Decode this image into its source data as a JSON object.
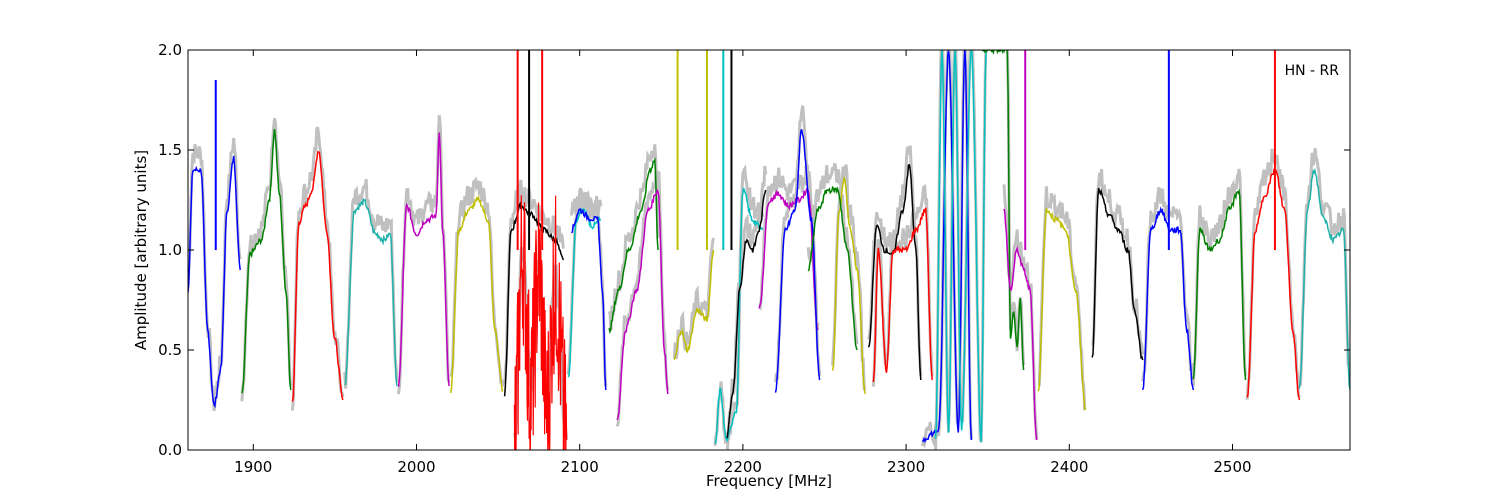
{
  "chart_data": {
    "type": "line",
    "title": "",
    "xlabel": "Frequency [MHz]",
    "ylabel": "Amplitude [arbitrary units]",
    "annotation": "HN - RR",
    "xlim": [
      1860,
      2572
    ],
    "ylim": [
      0.0,
      2.0
    ],
    "x_ticks": [
      1900,
      2000,
      2100,
      2200,
      2300,
      2400,
      2500
    ],
    "x_tick_labels": [
      "1900",
      "2000",
      "2100",
      "2200",
      "2300",
      "2400",
      "2500"
    ],
    "y_ticks": [
      0.0,
      0.5,
      1.0,
      1.5,
      2.0
    ],
    "y_tick_labels": [
      "0.0",
      "0.5",
      "1.0",
      "1.5",
      "2.0"
    ],
    "grid": false,
    "legend": "none",
    "background_series_color": "#c0c0c0",
    "segments": [
      {
        "color": "#0000ff",
        "x": [
          1860,
          1863,
          1868,
          1872,
          1876,
          1880,
          1884,
          1888,
          1892
        ],
        "y": [
          0.8,
          1.4,
          1.4,
          0.6,
          0.22,
          0.4,
          1.2,
          1.46,
          0.9
        ],
        "spikes": [
          [
            1877,
            1.85
          ]
        ]
      },
      {
        "color": "#008000",
        "x": [
          1893,
          1898,
          1905,
          1910,
          1913,
          1916,
          1920,
          1923
        ],
        "y": [
          0.27,
          0.98,
          1.05,
          1.26,
          1.6,
          1.28,
          0.8,
          0.3
        ]
      },
      {
        "color": "#ff0000",
        "x": [
          1924,
          1928,
          1932,
          1936,
          1940,
          1945,
          1950,
          1955
        ],
        "y": [
          0.24,
          1.14,
          1.22,
          1.3,
          1.5,
          1.1,
          0.55,
          0.25
        ]
      },
      {
        "color": "#20b2aa",
        "x": [
          1956,
          1962,
          1968,
          1975,
          1980,
          1984,
          1988
        ],
        "y": [
          0.32,
          1.2,
          1.24,
          1.08,
          1.05,
          1.08,
          0.32
        ]
      },
      {
        "color": "#c000c0",
        "x": [
          1989,
          1994,
          2000,
          2006,
          2012,
          2014,
          2016,
          2020
        ],
        "y": [
          0.32,
          1.22,
          1.08,
          1.15,
          1.17,
          1.6,
          1.1,
          0.32
        ]
      },
      {
        "color": "#bfbf00",
        "x": [
          2021,
          2026,
          2032,
          2038,
          2044,
          2048,
          2053
        ],
        "y": [
          0.3,
          1.1,
          1.2,
          1.25,
          1.15,
          0.6,
          0.3
        ]
      },
      {
        "color": "#000000",
        "x": [
          2054,
          2058,
          2064,
          2070,
          2078,
          2085,
          2090
        ],
        "y": [
          0.28,
          1.1,
          1.22,
          1.18,
          1.1,
          1.05,
          0.95
        ],
        "spikes": [
          [
            2069,
            2.0
          ]
        ]
      },
      {
        "color": "#ff0000",
        "x": [
          2060,
          2065,
          2070,
          2075,
          2080,
          2085,
          2092
        ],
        "y": [
          0.05,
          0.98,
          0.3,
          0.9,
          0.2,
          0.85,
          0.05
        ],
        "spikes": [
          [
            2062,
            2.0
          ],
          [
            2077,
            2.0
          ]
        ]
      },
      {
        "color": "#00bfbf",
        "x": [
          2093,
          2098,
          2102,
          2108,
          2113
        ],
        "y": [
          0.35,
          1.15,
          1.2,
          1.12,
          1.15
        ]
      },
      {
        "color": "#0000ff",
        "x": [
          2095,
          2100,
          2106,
          2111,
          2114,
          2116
        ],
        "y": [
          1.1,
          1.2,
          1.16,
          1.15,
          0.8,
          0.3
        ]
      },
      {
        "color": "#008000",
        "x": [
          2118,
          2124,
          2130,
          2138,
          2143,
          2146,
          2148
        ],
        "y": [
          0.6,
          0.8,
          1.0,
          1.2,
          1.4,
          1.45,
          1.0
        ]
      },
      {
        "color": "#c000c0",
        "x": [
          2123,
          2128,
          2135,
          2142,
          2148,
          2152,
          2154
        ],
        "y": [
          0.15,
          0.6,
          0.8,
          1.2,
          1.3,
          0.5,
          0.28
        ]
      },
      {
        "color": "#bfbf00",
        "x": [
          2158,
          2162,
          2166,
          2172,
          2178,
          2182
        ],
        "y": [
          0.45,
          0.6,
          0.5,
          0.7,
          0.65,
          1.0
        ],
        "spikes": [
          [
            2160,
            2.0
          ],
          [
            2178,
            2.0
          ]
        ]
      },
      {
        "color": "#00bfbf",
        "x": [
          2183,
          2186,
          2190,
          2196,
          2200,
          2206,
          2212
        ],
        "y": [
          0.02,
          0.3,
          0.05,
          0.2,
          1.3,
          1.15,
          1.1
        ],
        "spikes": [
          [
            2188,
            2.0
          ]
        ]
      },
      {
        "color": "#000000",
        "x": [
          2190,
          2194,
          2198,
          2202,
          2206,
          2210,
          2214
        ],
        "y": [
          0.05,
          0.3,
          0.8,
          1.05,
          1.0,
          1.1,
          1.3
        ],
        "spikes": [
          [
            2193,
            2.0
          ]
        ]
      },
      {
        "color": "#c000c0",
        "x": [
          2210,
          2216,
          2222,
          2228,
          2234,
          2240,
          2246
        ],
        "y": [
          0.7,
          1.25,
          1.28,
          1.22,
          1.25,
          1.3,
          0.6
        ]
      },
      {
        "color": "#0000ff",
        "x": [
          2220,
          2226,
          2232,
          2236,
          2242,
          2247
        ],
        "y": [
          0.3,
          1.1,
          1.2,
          1.6,
          1.15,
          0.35
        ]
      },
      {
        "color": "#bfbf00",
        "x": [
          2255,
          2259,
          2262,
          2266,
          2270,
          2275
        ],
        "y": [
          0.4,
          1.2,
          1.35,
          1.1,
          0.9,
          0.28
        ]
      },
      {
        "color": "#008000",
        "x": [
          2240,
          2246,
          2252,
          2258,
          2264,
          2270
        ],
        "y": [
          0.9,
          1.2,
          1.3,
          1.3,
          1.0,
          0.5
        ]
      },
      {
        "color": "#000000",
        "x": [
          2277,
          2282,
          2287,
          2292,
          2298,
          2302,
          2306,
          2309
        ],
        "y": [
          0.5,
          1.12,
          1.0,
          0.98,
          1.2,
          1.42,
          1.0,
          0.35
        ]
      },
      {
        "color": "#ff0000",
        "x": [
          2280,
          2283,
          2288,
          2292,
          2300,
          2306,
          2312,
          2316
        ],
        "y": [
          0.35,
          1.0,
          0.4,
          1.0,
          1.0,
          1.1,
          1.2,
          0.35
        ]
      },
      {
        "color": "#0000ff",
        "x": [
          2310,
          2316,
          2320,
          2326,
          2332,
          2336,
          2340
        ],
        "y": [
          0.05,
          0.08,
          0.1,
          2.0,
          0.1,
          2.0,
          0.05
        ]
      },
      {
        "color": "#00bfbf",
        "x": [
          2318,
          2322,
          2326,
          2330,
          2334,
          2340,
          2346,
          2349
        ],
        "y": [
          0.05,
          2.0,
          0.1,
          2.0,
          0.1,
          2.0,
          0.05,
          2.0
        ]
      },
      {
        "color": "#008000",
        "x": [
          2346,
          2362,
          2364,
          2366,
          2368,
          2370,
          2372
        ],
        "y": [
          2.0,
          2.0,
          0.55,
          0.7,
          0.5,
          0.75,
          0.4
        ]
      },
      {
        "color": "#c000c0",
        "x": [
          2360,
          2364,
          2368,
          2372,
          2376,
          2380
        ],
        "y": [
          1.2,
          0.8,
          1.0,
          0.9,
          0.8,
          0.05
        ],
        "spikes": [
          [
            2373,
            2.0
          ]
        ]
      },
      {
        "color": "#bfbf00",
        "x": [
          2381,
          2386,
          2392,
          2398,
          2404,
          2410
        ],
        "y": [
          0.3,
          1.2,
          1.15,
          1.1,
          0.8,
          0.2
        ]
      },
      {
        "color": "#000000",
        "x": [
          2414,
          2418,
          2424,
          2430,
          2436,
          2440,
          2445
        ],
        "y": [
          0.45,
          1.3,
          1.18,
          1.1,
          1.0,
          0.7,
          0.45
        ]
      },
      {
        "color": "#0000ff",
        "x": [
          2445,
          2450,
          2456,
          2462,
          2468,
          2472,
          2476
        ],
        "y": [
          0.3,
          1.1,
          1.2,
          1.1,
          1.1,
          0.6,
          0.3
        ],
        "spikes": [
          [
            2461,
            2.0
          ]
        ]
      },
      {
        "color": "#008000",
        "x": [
          2476,
          2480,
          2486,
          2492,
          2498,
          2504,
          2508
        ],
        "y": [
          0.35,
          1.1,
          1.0,
          1.05,
          1.2,
          1.3,
          0.35
        ]
      },
      {
        "color": "#ff0000",
        "x": [
          2509,
          2514,
          2520,
          2526,
          2532,
          2537,
          2541
        ],
        "y": [
          0.25,
          1.1,
          1.28,
          1.4,
          1.2,
          0.6,
          0.25
        ],
        "spikes": [
          [
            2526,
            2.0
          ]
        ]
      },
      {
        "color": "#20b2aa",
        "x": [
          2541,
          2546,
          2550,
          2556,
          2562,
          2568,
          2572
        ],
        "y": [
          0.3,
          1.2,
          1.4,
          1.15,
          1.05,
          1.1,
          0.3
        ]
      }
    ]
  }
}
